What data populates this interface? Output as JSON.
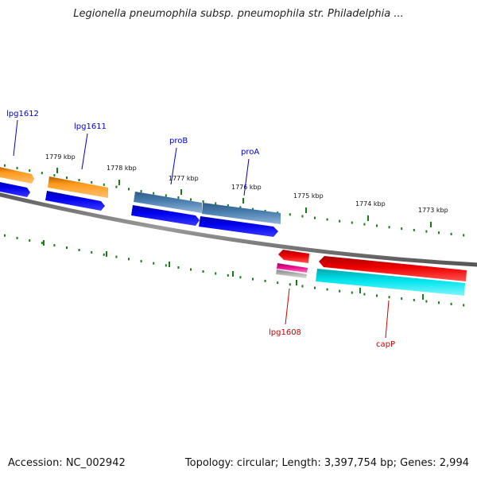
{
  "title": "Legionella pneumophila subsp. pneumophila str. Philadelphia ...",
  "footer": {
    "accession": "Accession: NC_002942",
    "topology": "Topology: circular; Length: 3,397,754 bp; Genes: 2,994"
  },
  "ruler": {
    "ticks": [
      {
        "label": "1779 kbp"
      },
      {
        "label": "1778 kbp"
      },
      {
        "label": "1777 kbp"
      },
      {
        "label": "1776 kbp"
      },
      {
        "label": "1775 kbp"
      },
      {
        "label": "1774 kbp"
      },
      {
        "label": "1773 kbp"
      }
    ]
  },
  "gene_labels": [
    {
      "name": "lpg1612",
      "strand": "forward"
    },
    {
      "name": "lpg1611",
      "strand": "forward"
    },
    {
      "name": "proB",
      "strand": "forward"
    },
    {
      "name": "proA",
      "strand": "forward"
    },
    {
      "name": "lpg1608",
      "strand": "reverse"
    },
    {
      "name": "capP",
      "strand": "reverse"
    }
  ],
  "colors": {
    "forward_label": "#0000cc",
    "reverse_label": "#cc0000",
    "tick": "#1a7a1a",
    "backbone": "#808080",
    "orange_gene": "#ff9a1a",
    "blue_cds": "#0000ee",
    "steel_gene": "#4a7fb0",
    "red_gene": "#ee0000",
    "cyan_cds": "#00e5ee",
    "magenta_gene": "#ee1493",
    "grey_gene": "#b0b0b0"
  }
}
